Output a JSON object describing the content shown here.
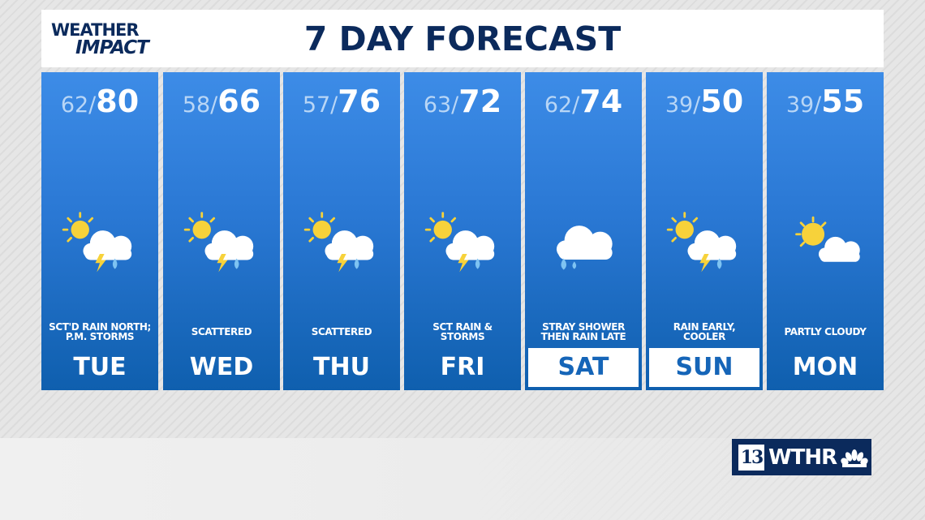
{
  "header": {
    "logo_line1": "WEATHER",
    "logo_line2": "IMPACT",
    "title": "7 DAY FORECAST"
  },
  "colors": {
    "navy": "#0b2a5c",
    "blue_top": "#3d8ce7",
    "blue_bottom": "#0f5fae",
    "sun": "#f7d23a"
  },
  "days": [
    {
      "day": "TUE",
      "low": "62/",
      "high": "80",
      "desc": "SCT'D RAIN NORTH; P.M. STORMS",
      "icon": "sun-cloud-storm-icon",
      "highlight": false
    },
    {
      "day": "WED",
      "low": "58/",
      "high": "66",
      "desc": "SCATTERED",
      "icon": "sun-cloud-storm-icon",
      "highlight": false
    },
    {
      "day": "THU",
      "low": "57/",
      "high": "76",
      "desc": "SCATTERED",
      "icon": "sun-cloud-storm-icon",
      "highlight": false
    },
    {
      "day": "FRI",
      "low": "63/",
      "high": "72",
      "desc": "SCT RAIN & STORMS",
      "icon": "sun-cloud-storm-icon",
      "highlight": false
    },
    {
      "day": "SAT",
      "low": "62/",
      "high": "74",
      "desc": "STRAY SHOWER THEN RAIN LATE",
      "icon": "cloud-rain-icon",
      "highlight": true
    },
    {
      "day": "SUN",
      "low": "39/",
      "high": "50",
      "desc": "RAIN EARLY, COOLER",
      "icon": "sun-cloud-storm-icon",
      "highlight": true
    },
    {
      "day": "MON",
      "low": "39/",
      "high": "55",
      "desc": "PARTLY CLOUDY",
      "icon": "partly-cloudy-icon",
      "highlight": false
    }
  ],
  "brand": {
    "channel": "13",
    "call_sign": "WTHR",
    "network": "nbc-peacock-icon"
  }
}
